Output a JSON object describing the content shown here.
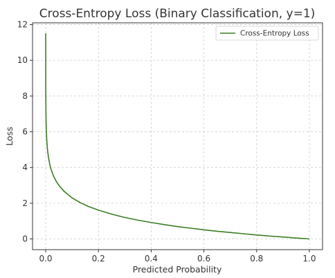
{
  "chart_data": {
    "type": "line",
    "title": "Cross-Entropy Loss (Binary Classification, y=1)",
    "xlabel": "Predicted Probability",
    "ylabel": "Loss",
    "xlim": [
      -0.05,
      1.05
    ],
    "ylim": [
      -0.6,
      12.1
    ],
    "x_ticks": [
      0.0,
      0.2,
      0.4,
      0.6,
      0.8,
      1.0
    ],
    "x_tick_labels": [
      "0.0",
      "0.2",
      "0.4",
      "0.6",
      "0.8",
      "1.0"
    ],
    "y_ticks": [
      0,
      2,
      4,
      6,
      8,
      10,
      12
    ],
    "y_tick_labels": [
      "0",
      "2",
      "4",
      "6",
      "8",
      "10",
      "12"
    ],
    "grid": true,
    "legend_position": "top-right",
    "series": [
      {
        "name": "Cross-Entropy Loss",
        "color": "#3a7d22",
        "x": [
          1e-05,
          3e-05,
          0.0001,
          0.0003,
          0.001,
          0.002,
          0.004,
          0.007,
          0.01,
          0.015,
          0.02,
          0.03,
          0.04,
          0.05,
          0.07,
          0.1,
          0.13,
          0.16,
          0.2,
          0.25,
          0.3,
          0.35,
          0.4,
          0.45,
          0.5,
          0.55,
          0.6,
          0.65,
          0.7,
          0.75,
          0.8,
          0.85,
          0.9,
          0.95,
          1.0
        ],
        "y": [
          11.51,
          10.41,
          9.21,
          8.11,
          6.91,
          6.21,
          5.52,
          4.96,
          4.61,
          4.2,
          3.91,
          3.51,
          3.22,
          3.0,
          2.66,
          2.3,
          2.04,
          1.83,
          1.61,
          1.39,
          1.2,
          1.05,
          0.92,
          0.8,
          0.69,
          0.6,
          0.51,
          0.43,
          0.36,
          0.29,
          0.22,
          0.16,
          0.11,
          0.05,
          0.0
        ]
      }
    ]
  }
}
